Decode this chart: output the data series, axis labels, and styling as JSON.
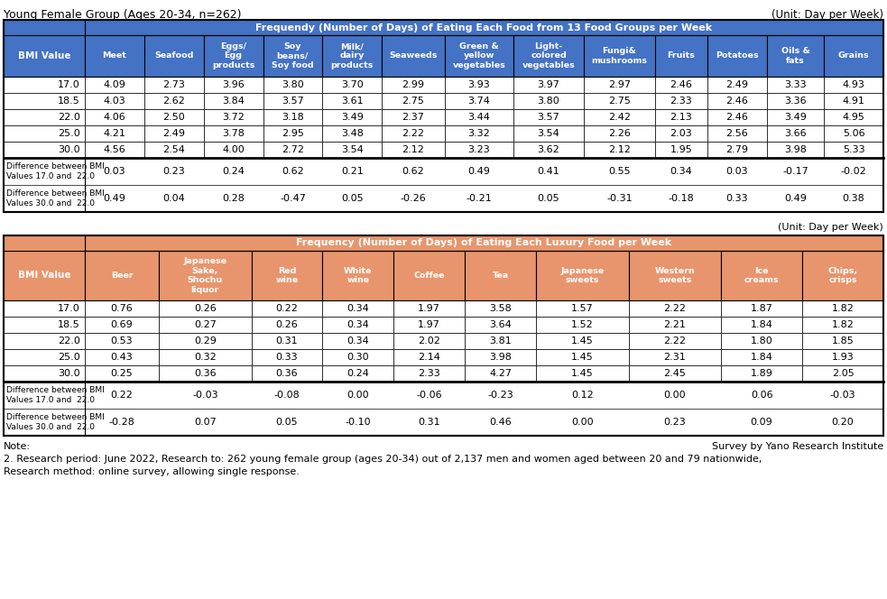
{
  "title_left": "Young Female Group (Ages 20-34, n=262)",
  "title_right": "(Unit: Day per Week)",
  "table1_header_main": "Frequendy (Number of Days) of Eating Each Food from 13 Food Groups per Week",
  "table1_col_headers": [
    "BMI Value",
    "Meet",
    "Seafood",
    "Eggs/\nEgg\nproducts",
    "Soy\nbeans/\nSoy food",
    "Milk/\ndairy\nproducts",
    "Seaweeds",
    "Green &\nyellow\nvegetables",
    "Light-\ncolored\nvegetables",
    "Fungi&\nmushrooms",
    "Fruits",
    "Potatoes",
    "Oils &\nfats",
    "Grains"
  ],
  "table1_bmi_rows": [
    [
      "17.0",
      "4.09",
      "2.73",
      "3.96",
      "3.80",
      "3.70",
      "2.99",
      "3.93",
      "3.97",
      "2.97",
      "2.46",
      "2.49",
      "3.33",
      "4.93"
    ],
    [
      "18.5",
      "4.03",
      "2.62",
      "3.84",
      "3.57",
      "3.61",
      "2.75",
      "3.74",
      "3.80",
      "2.75",
      "2.33",
      "2.46",
      "3.36",
      "4.91"
    ],
    [
      "22.0",
      "4.06",
      "2.50",
      "3.72",
      "3.18",
      "3.49",
      "2.37",
      "3.44",
      "3.57",
      "2.42",
      "2.13",
      "2.46",
      "3.49",
      "4.95"
    ],
    [
      "25.0",
      "4.21",
      "2.49",
      "3.78",
      "2.95",
      "3.48",
      "2.22",
      "3.32",
      "3.54",
      "2.26",
      "2.03",
      "2.56",
      "3.66",
      "5.06"
    ],
    [
      "30.0",
      "4.56",
      "2.54",
      "4.00",
      "2.72",
      "3.54",
      "2.12",
      "3.23",
      "3.62",
      "2.12",
      "1.95",
      "2.79",
      "3.98",
      "5.33"
    ]
  ],
  "table1_diff_rows": [
    [
      "Difference between BMI\nValues 17.0 and  22.0",
      "0.03",
      "0.23",
      "0.24",
      "0.62",
      "0.21",
      "0.62",
      "0.49",
      "0.41",
      "0.55",
      "0.34",
      "0.03",
      "-0.17",
      "-0.02"
    ],
    [
      "Difference between BMI\nValues 30.0 and  22.0",
      "0.49",
      "0.04",
      "0.28",
      "-0.47",
      "0.05",
      "-0.26",
      "-0.21",
      "0.05",
      "-0.31",
      "-0.18",
      "0.33",
      "0.49",
      "0.38"
    ]
  ],
  "table2_unit": "(Unit: Day per Week)",
  "table2_header_main": "Frequency (Number of Days) of Eating Each Luxury Food per Week",
  "table2_col_headers": [
    "BMI Value",
    "Beer",
    "Japanese\nSake,\nShochu\nliquor",
    "Red\nwine",
    "White\nwine",
    "Coffee",
    "Tea",
    "Japanese\nsweets",
    "Western\nsweets",
    "Ice\ncreams",
    "Chips,\ncrisps"
  ],
  "table2_bmi_rows": [
    [
      "17.0",
      "0.76",
      "0.26",
      "0.22",
      "0.34",
      "1.97",
      "3.58",
      "1.57",
      "2.22",
      "1.87",
      "1.82"
    ],
    [
      "18.5",
      "0.69",
      "0.27",
      "0.26",
      "0.34",
      "1.97",
      "3.64",
      "1.52",
      "2.21",
      "1.84",
      "1.82"
    ],
    [
      "22.0",
      "0.53",
      "0.29",
      "0.31",
      "0.34",
      "2.02",
      "3.81",
      "1.45",
      "2.22",
      "1.80",
      "1.85"
    ],
    [
      "25.0",
      "0.43",
      "0.32",
      "0.33",
      "0.30",
      "2.14",
      "3.98",
      "1.45",
      "2.31",
      "1.84",
      "1.93"
    ],
    [
      "30.0",
      "0.25",
      "0.36",
      "0.36",
      "0.24",
      "2.33",
      "4.27",
      "1.45",
      "2.45",
      "1.89",
      "2.05"
    ]
  ],
  "table2_diff_rows": [
    [
      "Difference between BMI\nValues 17.0 and  22.0",
      "0.22",
      "-0.03",
      "-0.08",
      "0.00",
      "-0.06",
      "-0.23",
      "0.12",
      "0.00",
      "0.06",
      "-0.03"
    ],
    [
      "Difference between BMI\nValues 30.0 and  22.0",
      "-0.28",
      "0.07",
      "0.05",
      "-0.10",
      "0.31",
      "0.46",
      "0.00",
      "0.23",
      "0.09",
      "0.20"
    ]
  ],
  "note_left": "Note:",
  "note_right": "Survey by Yano Research Institute",
  "note_body": "2. Research period: June 2022, Research to: 262 young female group (ages 20-34) out of 2,137 men and women aged between 20 and 79 nationwide,\nResearch method: online survey, allowing single response.",
  "header_bg_blue": "#4472C4",
  "header_bg_orange": "#E8956D",
  "header_text_color": "#FFFFFF",
  "data_text_color": "#000000"
}
